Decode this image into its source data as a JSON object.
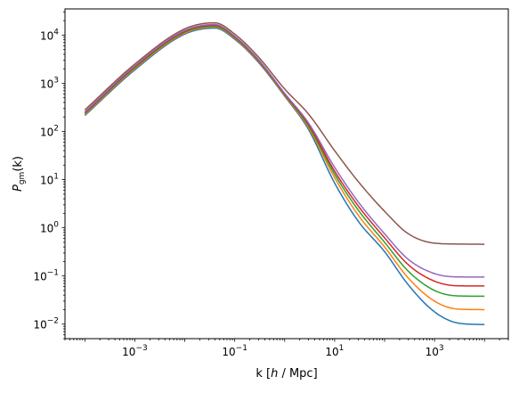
{
  "chart_data": {
    "type": "line",
    "title": "",
    "xlabel_parts": [
      "k [",
      "h",
      " / Mpc]"
    ],
    "ylabel_parts": [
      "P",
      "gm",
      "(k)"
    ],
    "xscale": "log",
    "yscale": "log",
    "xlim": [
      4e-05,
      30000
    ],
    "ylim": [
      0.005,
      35000
    ],
    "grid": false,
    "legend": "none",
    "x_ticks": [
      {
        "value": 0.001,
        "base": "10",
        "exp": "−3"
      },
      {
        "value": 0.1,
        "base": "10",
        "exp": "−1"
      },
      {
        "value": 10,
        "base": "10",
        "exp": "1"
      },
      {
        "value": 1000,
        "base": "10",
        "exp": "3"
      }
    ],
    "y_ticks": [
      {
        "value": 0.01,
        "base": "10",
        "exp": "−2"
      },
      {
        "value": 0.1,
        "base": "10",
        "exp": "−1"
      },
      {
        "value": 1,
        "base": "10",
        "exp": "0"
      },
      {
        "value": 10,
        "base": "10",
        "exp": "1"
      },
      {
        "value": 100,
        "base": "10",
        "exp": "2"
      },
      {
        "value": 1000,
        "base": "10",
        "exp": "3"
      },
      {
        "value": 10000,
        "base": "10",
        "exp": "4"
      }
    ],
    "x": [
      0.0001,
      0.001,
      0.01,
      0.04,
      0.1,
      0.3,
      1,
      3,
      10,
      30,
      100,
      300,
      1000,
      3000,
      10000
    ],
    "series": [
      {
        "color": "#1f77b4",
        "values": [
          215,
          1900,
          10500,
          14000,
          8200,
          2700,
          540,
          110,
          8.5,
          1.35,
          0.32,
          0.065,
          0.018,
          0.0105,
          0.0098
        ]
      },
      {
        "color": "#ff7f0e",
        "values": [
          225,
          2000,
          11000,
          14700,
          8500,
          2800,
          560,
          120,
          11,
          1.8,
          0.4,
          0.09,
          0.03,
          0.0205,
          0.02
        ]
      },
      {
        "color": "#2ca02c",
        "values": [
          235,
          2100,
          11500,
          15300,
          8800,
          2900,
          580,
          130,
          13,
          2.3,
          0.5,
          0.125,
          0.05,
          0.0385,
          0.038
        ]
      },
      {
        "color": "#d62728",
        "values": [
          245,
          2200,
          12000,
          16000,
          9200,
          3000,
          600,
          140,
          15,
          2.8,
          0.62,
          0.17,
          0.078,
          0.0625,
          0.062
        ]
      },
      {
        "color": "#9467bd",
        "values": [
          255,
          2300,
          12500,
          16600,
          9500,
          3100,
          620,
          150,
          18,
          3.4,
          0.75,
          0.22,
          0.112,
          0.0955,
          0.095
        ]
      },
      {
        "color": "#8c564b",
        "values": [
          280,
          2500,
          13500,
          18000,
          10500,
          3500,
          760,
          230,
          40,
          9.0,
          2.2,
          0.75,
          0.48,
          0.46,
          0.455
        ]
      }
    ]
  }
}
